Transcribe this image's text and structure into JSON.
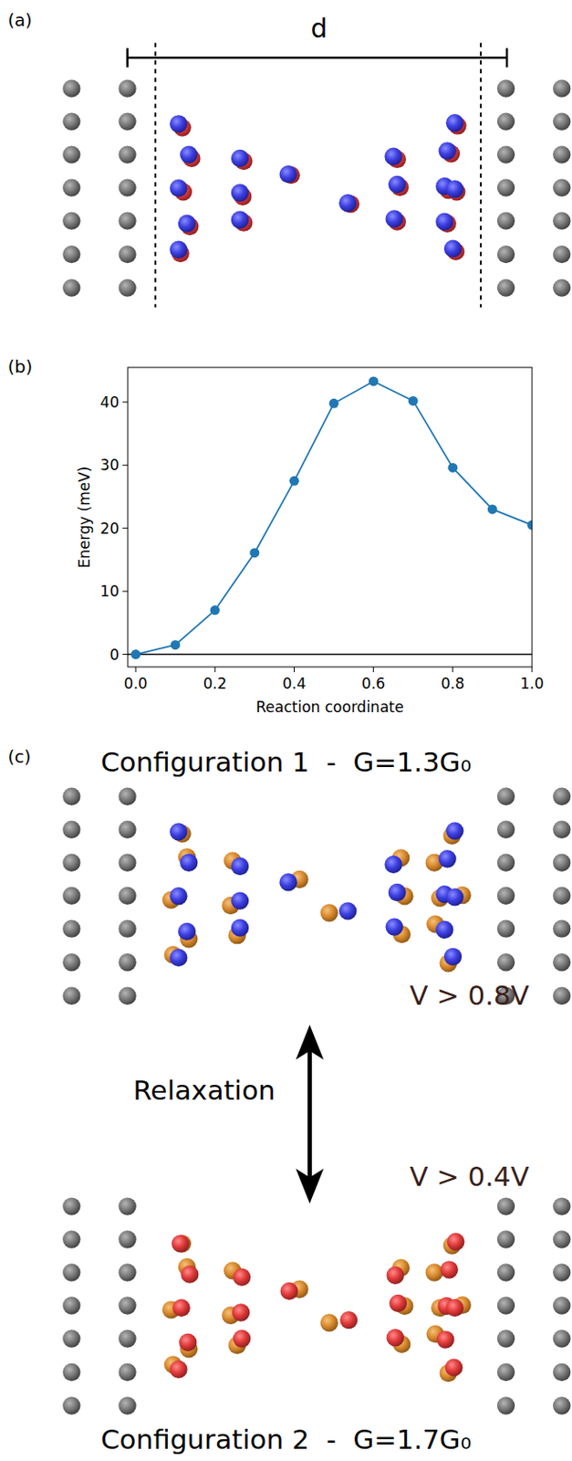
{
  "panel_labels": [
    "(a)",
    "(b)",
    "(c)"
  ],
  "panel_a": {
    "distance_label": "d"
  },
  "chart_data": {
    "type": "line",
    "x": [
      0,
      0.1,
      0.2,
      0.3,
      0.4,
      0.5,
      0.6,
      0.7,
      0.8,
      0.9,
      1.0
    ],
    "values": [
      0,
      1.5,
      7,
      16.1,
      27.5,
      39.8,
      43.3,
      40.2,
      29.6,
      23,
      20.5
    ],
    "color": "#1f77b4",
    "marker": "circle",
    "x_label": "Reaction coordinate",
    "y_label": "Energy (meV)",
    "xlim": [
      -0.02,
      1.0
    ],
    "ylim": [
      -2,
      45.5
    ],
    "xticks": [
      {
        "value": 0,
        "label": "0.0"
      },
      0.2,
      0.4,
      0.6,
      0.8,
      {
        "value": 1.0,
        "label": "1.0"
      }
    ],
    "yticks": [
      0,
      10,
      20,
      30,
      40
    ],
    "hline": 0,
    "grid": false
  },
  "panel_c": {
    "configurations": [
      {
        "title": "Configuration 1  -  G=1.3G₀"
      },
      {
        "title": "Configuration 2  -  G=1.7G₀"
      }
    ],
    "transition": "Relaxation",
    "voltages": [
      "V > 0.8V",
      "V > 0.4V"
    ]
  }
}
